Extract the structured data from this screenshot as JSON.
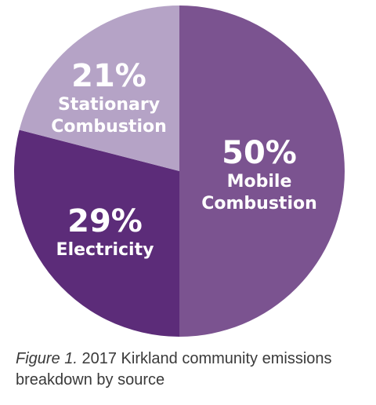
{
  "chart_data": {
    "type": "pie",
    "slices": [
      {
        "name": "Mobile Combustion",
        "label_lines": [
          "Mobile",
          "Combustion"
        ],
        "value": 50,
        "value_label": "50%",
        "color": "#7b5390"
      },
      {
        "name": "Electricity",
        "label_lines": [
          "Electricity"
        ],
        "value": 29,
        "value_label": "29%",
        "color": "#5c2c79"
      },
      {
        "name": "Stationary Combustion",
        "label_lines": [
          "Stationary",
          "Combustion"
        ],
        "value": 21,
        "value_label": "21%",
        "color": "#b5a3c6"
      }
    ],
    "legend": "none"
  },
  "caption": {
    "figure_label": "Figure 1.",
    "text": "2017 Kirkland community emissions breakdown by source"
  }
}
